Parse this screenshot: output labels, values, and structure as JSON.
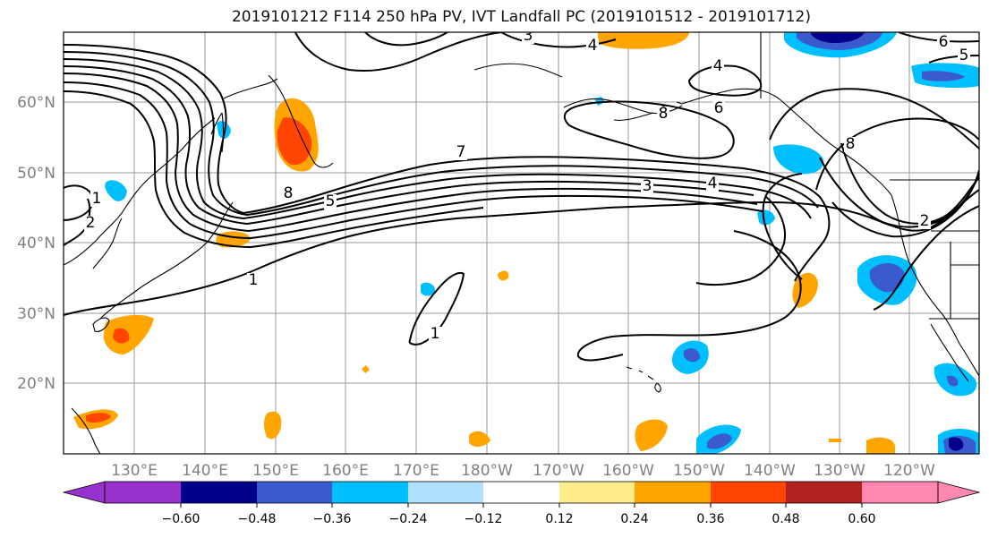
{
  "title": "2019101212 F114 250 hPa PV, IVT Landfall PC (2019101512 - 2019101712)",
  "map": {
    "lon_labels": [
      "130°E",
      "140°E",
      "150°E",
      "160°E",
      "170°E",
      "180°W",
      "170°W",
      "160°W",
      "150°W",
      "140°W",
      "130°W",
      "120°W"
    ],
    "lat_labels": [
      "60°N",
      "50°N",
      "40°N",
      "30°N",
      "20°N"
    ],
    "contour_labels": [
      {
        "text": "3",
        "pos": "top-center-left"
      },
      {
        "text": "4",
        "pos": "top-center"
      },
      {
        "text": "4",
        "pos": "top-right-mid"
      },
      {
        "text": "6",
        "pos": "top-right"
      },
      {
        "text": "5",
        "pos": "top-right-edge"
      },
      {
        "text": "6",
        "pos": "alaska"
      },
      {
        "text": "8",
        "pos": "aleutians"
      },
      {
        "text": "8",
        "pos": "gulf-of-alaska"
      },
      {
        "text": "7",
        "pos": "mid-pacific"
      },
      {
        "text": "3",
        "pos": "central"
      },
      {
        "text": "4",
        "pos": "central-right"
      },
      {
        "text": "5",
        "pos": "japan-east"
      },
      {
        "text": "8",
        "pos": "kamchatka-south"
      },
      {
        "text": "1",
        "pos": "asia-north"
      },
      {
        "text": "2",
        "pos": "asia-mid"
      },
      {
        "text": "1",
        "pos": "japan-south"
      },
      {
        "text": "1",
        "pos": "hawaii-west"
      },
      {
        "text": "2",
        "pos": "california"
      }
    ]
  },
  "colorbar": {
    "ticks": [
      "−0.60",
      "−0.48",
      "−0.36",
      "−0.24",
      "−0.12",
      "0.12",
      "0.24",
      "0.36",
      "0.48",
      "0.60"
    ],
    "colors": [
      "#9932cc",
      "#00008b",
      "#3a5acd",
      "#00bfff",
      "#b0e2ff",
      "#ffffff",
      "#ffec8b",
      "#ffa500",
      "#ff4500",
      "#b22222",
      "#ff87b1"
    ]
  }
}
